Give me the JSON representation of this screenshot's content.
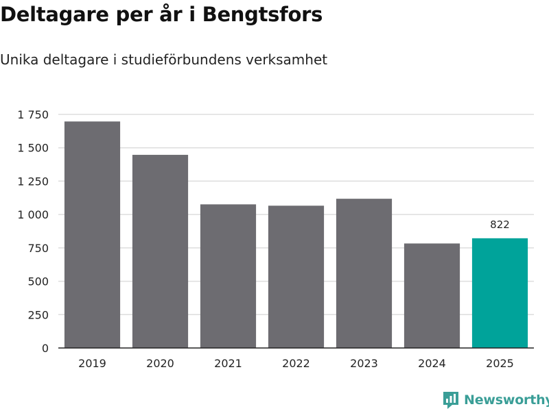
{
  "header": {
    "title": "Deltagare per år i Bengtsfors",
    "subtitle": "Unika deltagare i studieförbundens verksamhet"
  },
  "brand": {
    "name": "Newsworthy",
    "color": "#3a9e97"
  },
  "colors": {
    "bar": "#6d6c71",
    "highlight": "#00a39a",
    "grid": "#dddddd",
    "axis": "#222222",
    "text": "#222222"
  },
  "chart_data": {
    "type": "bar",
    "title": "Deltagare per år i Bengtsfors",
    "subtitle": "Unika deltagare i studieförbundens verksamhet",
    "xlabel": "",
    "ylabel": "",
    "categories": [
      "2019",
      "2020",
      "2021",
      "2022",
      "2023",
      "2024",
      "2025"
    ],
    "values": [
      1697,
      1447,
      1076,
      1066,
      1118,
      783,
      822
    ],
    "highlight_index": 6,
    "data_labels": [
      {
        "index": 6,
        "text": "822"
      }
    ],
    "ylim": [
      0,
      1750
    ],
    "yticks": [
      0,
      250,
      500,
      750,
      1000,
      1250,
      1500,
      1750
    ],
    "ytick_labels": [
      "0",
      "250",
      "500",
      "750",
      "1 000",
      "1 250",
      "1 500",
      "1 750"
    ],
    "grid": true,
    "legend": "none"
  }
}
